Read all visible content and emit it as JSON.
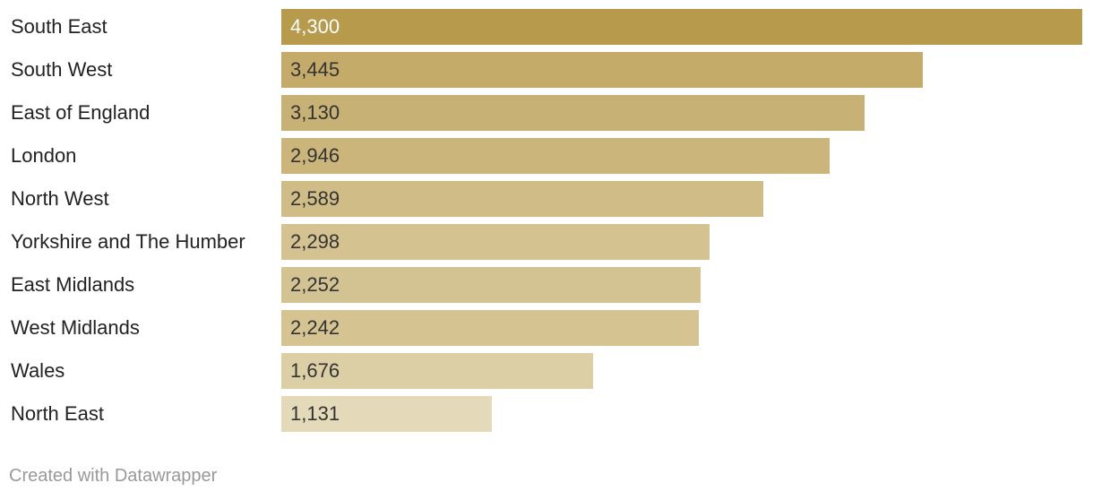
{
  "chart_data": {
    "type": "bar",
    "orientation": "horizontal",
    "categories": [
      "South East",
      "South West",
      "East of England",
      "London",
      "North West",
      "Yorkshire and The Humber",
      "East Midlands",
      "West Midlands",
      "Wales",
      "North East"
    ],
    "values": [
      4300,
      3445,
      3130,
      2946,
      2589,
      2298,
      2252,
      2242,
      1676,
      1131
    ],
    "value_labels": [
      "4,300",
      "3,445",
      "3,130",
      "2,946",
      "2,589",
      "2,298",
      "2,252",
      "2,242",
      "1,676",
      "1,131"
    ],
    "xlim": [
      0,
      4300
    ],
    "grid": false,
    "legend": "none",
    "colors": {
      "bar_max": "#b89a4c",
      "bar_min": "#e4d9b8",
      "label_on_dark": "#ffffff",
      "label_on_light": "#333333"
    }
  },
  "footer": {
    "credit": "Created with Datawrapper"
  }
}
